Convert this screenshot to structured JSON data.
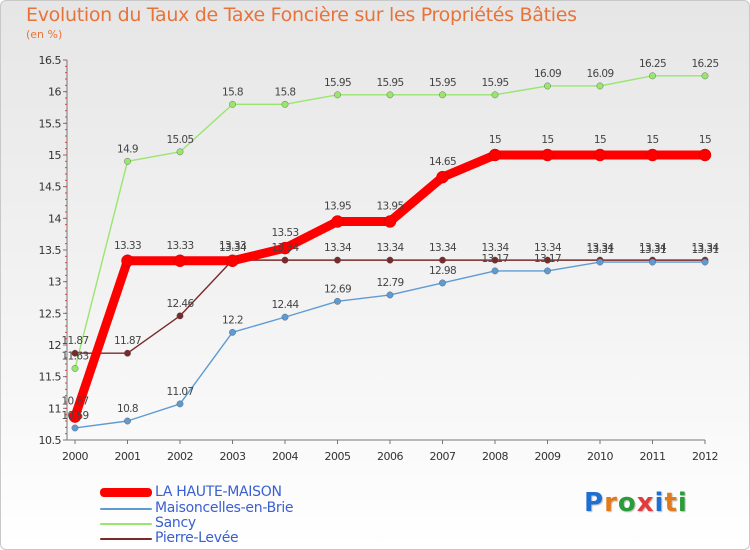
{
  "header": {
    "title": "Evolution du Taux de Taxe Foncière sur les Propriétés Bâties",
    "unit": "(en %)"
  },
  "logo": {
    "text": "Proxiti",
    "letters": [
      "P",
      "r",
      "o",
      "x",
      "i",
      "t",
      "i"
    ],
    "colors": [
      "#1f6fd1",
      "#e27a1c",
      "#2a9d3a",
      "#e23b3b",
      "#1f6fd1",
      "#e27a1c",
      "#2a9d3a"
    ]
  },
  "chart_data": {
    "type": "line",
    "title": "Evolution du Taux de Taxe Foncière sur les Propriétés Bâties",
    "ylabel": "(en %)",
    "xlabel": "",
    "x": [
      "2000",
      "2001",
      "2002",
      "2003",
      "2004",
      "2005",
      "2006",
      "2007",
      "2008",
      "2009",
      "2010",
      "2011",
      "2012"
    ],
    "ylim": [
      10.5,
      16.5
    ],
    "yticks": [
      "10.5",
      "11",
      "11.5",
      "12",
      "12.5",
      "13",
      "13.5",
      "14",
      "14.5",
      "15",
      "15.5",
      "16",
      "16.5"
    ],
    "grid": false,
    "legend_position": "bottom-left",
    "series": [
      {
        "name": "LA HAUTE-MAISON",
        "color": "#ff0000",
        "values": [
          10.87,
          13.33,
          13.33,
          13.33,
          13.53,
          13.95,
          13.95,
          14.65,
          15,
          15,
          15,
          15,
          15
        ],
        "labels": [
          "10.87",
          "13.33",
          "13.33",
          "13.33",
          "13.53",
          "13.95",
          "13.95",
          "14.65",
          "15",
          "15",
          "15",
          "15",
          "15"
        ]
      },
      {
        "name": "Maisoncelles-en-Brie",
        "color": "#5e9bd3",
        "values": [
          10.69,
          10.8,
          11.07,
          12.2,
          12.44,
          12.69,
          12.79,
          12.98,
          13.17,
          13.17,
          13.31,
          13.31,
          13.31
        ],
        "labels": [
          "10.69",
          "10.8",
          "11.07",
          "12.2",
          "12.44",
          "12.69",
          "12.79",
          "12.98",
          "13.17",
          "13.17",
          "13.31",
          "13.31",
          "13.31"
        ]
      },
      {
        "name": "Sancy",
        "color": "#99e66f",
        "values": [
          11.63,
          14.9,
          15.05,
          15.8,
          15.8,
          15.95,
          15.95,
          15.95,
          15.95,
          16.09,
          16.09,
          16.25,
          16.25
        ],
        "labels": [
          "11.63",
          "14.9",
          "15.05",
          "15.8",
          "15.8",
          "15.95",
          "15.95",
          "15.95",
          "15.95",
          "16.09",
          "16.09",
          "16.25",
          "16.25"
        ]
      },
      {
        "name": "Pierre-Levée",
        "color": "#7a2a2a",
        "values": [
          11.87,
          11.87,
          12.46,
          13.34,
          13.34,
          13.34,
          13.34,
          13.34,
          13.34,
          13.34,
          13.34,
          13.34,
          13.34
        ],
        "labels": [
          "11.87",
          "11.87",
          "12.46",
          "13.34",
          "13.34",
          "13.34",
          "13.34",
          "13.34",
          "13.34",
          "13.34",
          "13.34",
          "13.34",
          "13.34"
        ]
      }
    ]
  }
}
